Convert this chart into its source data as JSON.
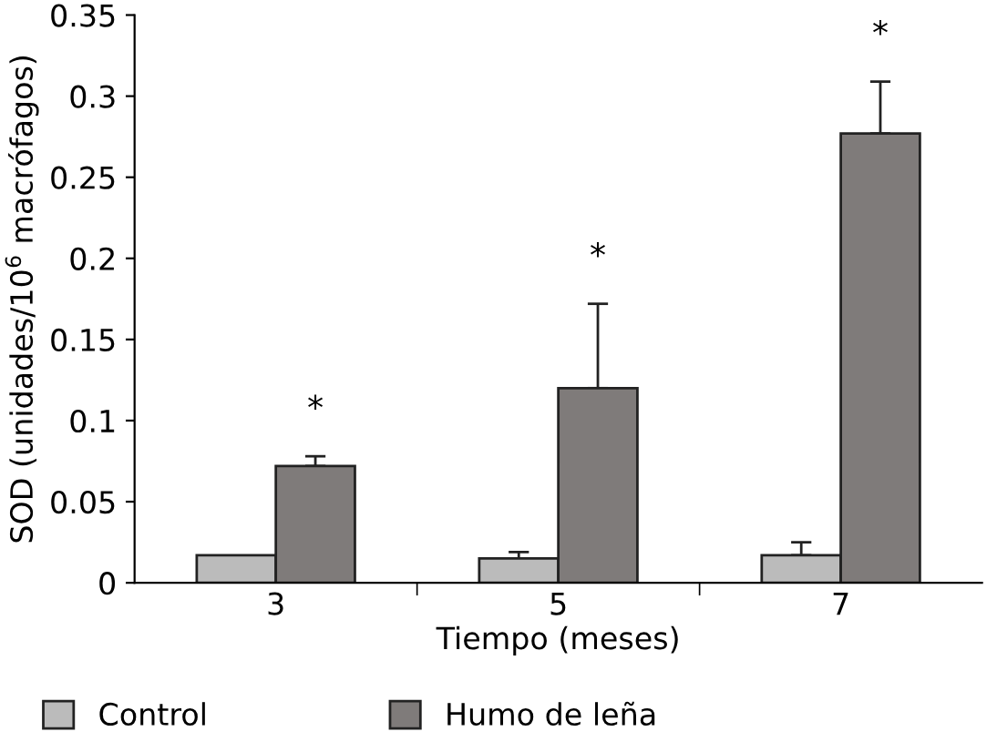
{
  "chart_data": {
    "type": "bar",
    "xlabel": "Tiempo (meses)",
    "ylabel": "SOD (unidades/10$^{6}$ macrófagos)",
    "categories": [
      "3",
      "5",
      "7"
    ],
    "series": [
      {
        "name": "Control",
        "color": "#bbbbbb",
        "values": [
          0.017,
          0.015,
          0.017
        ],
        "errors": [
          null,
          [
            0.015,
            0.019
          ],
          [
            0.017,
            0.025
          ]
        ]
      },
      {
        "name": "Humo de leña",
        "color": "#7f7b7a",
        "values": [
          0.072,
          0.12,
          0.277
        ],
        "errors": [
          [
            0.072,
            0.078
          ],
          [
            0.12,
            0.172
          ],
          [
            0.277,
            0.309
          ]
        ]
      }
    ],
    "annotations": [
      "*",
      "*",
      "*"
    ],
    "ylim": [
      0,
      0.35
    ],
    "yticks": [
      0,
      0.05,
      0.1,
      0.15,
      0.2,
      0.25,
      0.3,
      0.35
    ],
    "grid": false,
    "legend": "bottom"
  }
}
